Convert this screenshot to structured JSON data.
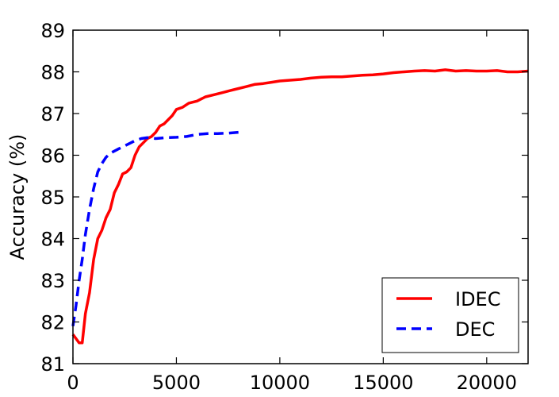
{
  "chart_data": {
    "type": "line",
    "title": "",
    "xlabel": "",
    "ylabel": "Accuracy (%)",
    "xlim": [
      0,
      22000
    ],
    "ylim": [
      81,
      89
    ],
    "xticks": [
      0,
      5000,
      10000,
      15000,
      20000
    ],
    "yticks": [
      81,
      82,
      83,
      84,
      85,
      86,
      87,
      88,
      89
    ],
    "xtick_labels": [
      "0",
      "5000",
      "10000",
      "15000",
      "20000"
    ],
    "ytick_labels": [
      "81",
      "82",
      "83",
      "84",
      "85",
      "86",
      "87",
      "88",
      "89"
    ],
    "grid": false,
    "legend_position": "bottom-right",
    "series": [
      {
        "name": "IDEC",
        "color": "#ff0000",
        "style": "solid",
        "x": [
          0,
          150,
          300,
          450,
          600,
          800,
          1000,
          1200,
          1400,
          1600,
          1800,
          2000,
          2200,
          2400,
          2600,
          2800,
          3000,
          3200,
          3400,
          3600,
          3800,
          4000,
          4200,
          4400,
          4600,
          4800,
          5000,
          5300,
          5600,
          6000,
          6400,
          6800,
          7200,
          7600,
          8000,
          8400,
          8800,
          9200,
          9600,
          10000,
          10500,
          11000,
          11500,
          12000,
          12500,
          13000,
          13500,
          14000,
          14500,
          15000,
          15500,
          16000,
          16500,
          17000,
          17500,
          18000,
          18500,
          19000,
          19500,
          20000,
          20500,
          21000,
          21500,
          22000
        ],
        "y": [
          81.7,
          81.6,
          81.5,
          81.5,
          82.2,
          82.7,
          83.5,
          84.0,
          84.2,
          84.5,
          84.7,
          85.1,
          85.3,
          85.55,
          85.6,
          85.7,
          86.0,
          86.2,
          86.3,
          86.4,
          86.45,
          86.55,
          86.7,
          86.75,
          86.85,
          86.95,
          87.1,
          87.15,
          87.25,
          87.3,
          87.4,
          87.45,
          87.5,
          87.55,
          87.6,
          87.65,
          87.7,
          87.72,
          87.75,
          87.78,
          87.8,
          87.82,
          87.85,
          87.87,
          87.88,
          87.88,
          87.9,
          87.92,
          87.93,
          87.95,
          87.98,
          88.0,
          88.02,
          88.03,
          88.02,
          88.05,
          88.02,
          88.03,
          88.02,
          88.02,
          88.03,
          88.0,
          88.0,
          88.02
        ]
      },
      {
        "name": "DEC",
        "color": "#0000ff",
        "style": "dashed",
        "x": [
          0,
          150,
          300,
          450,
          600,
          800,
          1000,
          1200,
          1400,
          1600,
          1800,
          2000,
          2200,
          2400,
          2600,
          2800,
          3000,
          3300,
          3600,
          4000,
          4500,
          5000,
          5500,
          6000,
          6500,
          7000,
          7500,
          8000
        ],
        "y": [
          81.9,
          82.4,
          83.0,
          83.5,
          84.1,
          84.7,
          85.2,
          85.6,
          85.8,
          85.95,
          86.05,
          86.1,
          86.15,
          86.2,
          86.25,
          86.3,
          86.35,
          86.4,
          86.42,
          86.4,
          86.42,
          86.43,
          86.45,
          86.5,
          86.52,
          86.52,
          86.53,
          86.55
        ]
      }
    ]
  }
}
